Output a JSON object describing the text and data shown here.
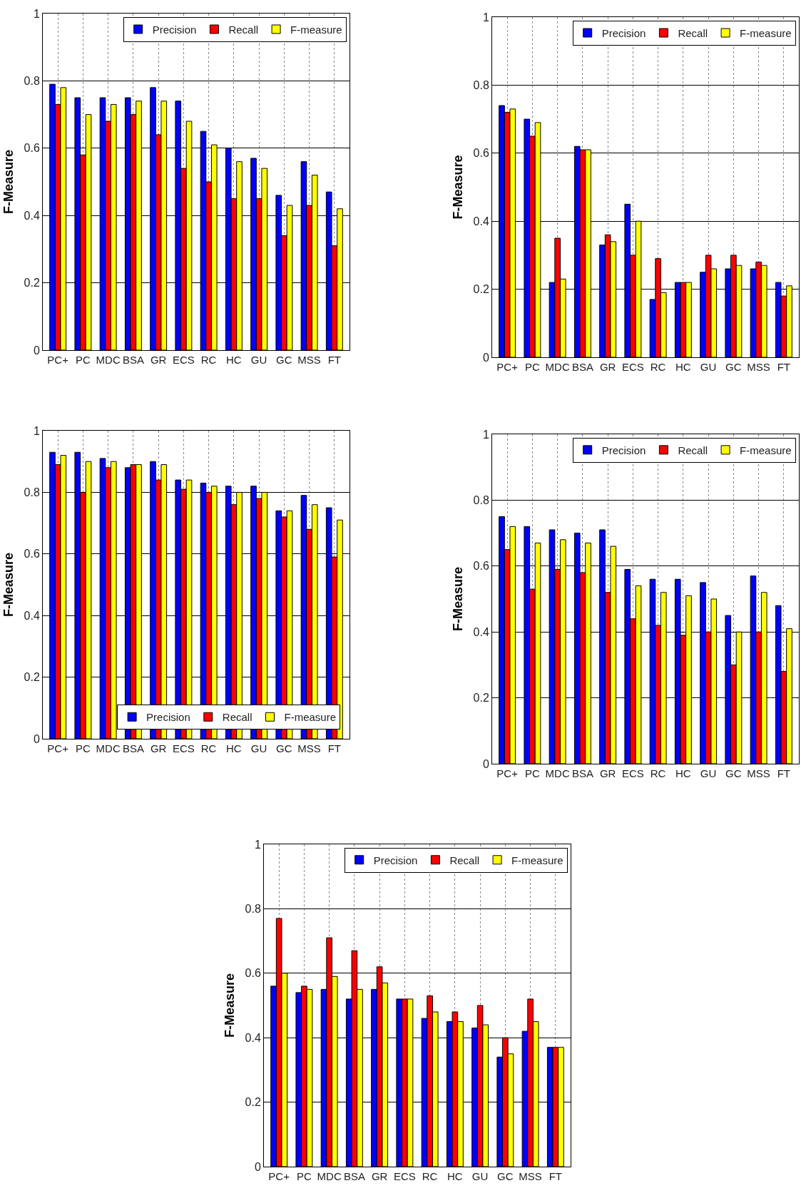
{
  "chart_data": [
    {
      "type": "bar",
      "ylabel": "F-Measure",
      "categories": [
        "PC+",
        "PC",
        "MDC",
        "BSA",
        "GR",
        "ECS",
        "RC",
        "HC",
        "GU",
        "GC",
        "MSS",
        "FT"
      ],
      "ylim": [
        0,
        1
      ],
      "yticks": [
        0,
        0.2,
        0.4,
        0.6,
        0.8,
        1
      ],
      "grid": true,
      "legend": "top right",
      "series": [
        {
          "name": "Precision",
          "color": "#0000ff",
          "values": [
            0.79,
            0.75,
            0.75,
            0.75,
            0.78,
            0.74,
            0.65,
            0.6,
            0.57,
            0.46,
            0.56,
            0.47
          ]
        },
        {
          "name": "Recall",
          "color": "#ff0000",
          "values": [
            0.73,
            0.58,
            0.68,
            0.7,
            0.64,
            0.54,
            0.5,
            0.45,
            0.45,
            0.34,
            0.43,
            0.31
          ]
        },
        {
          "name": "F-measure",
          "color": "#ffff00",
          "values": [
            0.78,
            0.7,
            0.73,
            0.74,
            0.74,
            0.68,
            0.61,
            0.56,
            0.54,
            0.43,
            0.52,
            0.42
          ]
        }
      ]
    },
    {
      "type": "bar",
      "ylabel": "F-Measure",
      "categories": [
        "PC+",
        "PC",
        "MDC",
        "BSA",
        "GR",
        "ECS",
        "RC",
        "HC",
        "GU",
        "GC",
        "MSS",
        "FT"
      ],
      "ylim": [
        0,
        1
      ],
      "yticks": [
        0,
        0.2,
        0.4,
        0.6,
        0.8,
        1
      ],
      "grid": true,
      "legend": "top right",
      "series": [
        {
          "name": "Precision",
          "color": "#0000ff",
          "values": [
            0.74,
            0.7,
            0.22,
            0.62,
            0.33,
            0.45,
            0.17,
            0.22,
            0.25,
            0.26,
            0.26,
            0.22
          ]
        },
        {
          "name": "Recall",
          "color": "#ff0000",
          "values": [
            0.72,
            0.65,
            0.35,
            0.61,
            0.36,
            0.3,
            0.29,
            0.22,
            0.3,
            0.3,
            0.28,
            0.18
          ]
        },
        {
          "name": "F-measure",
          "color": "#ffff00",
          "values": [
            0.73,
            0.69,
            0.23,
            0.61,
            0.34,
            0.4,
            0.19,
            0.22,
            0.26,
            0.27,
            0.27,
            0.21
          ]
        }
      ]
    },
    {
      "type": "bar",
      "ylabel": "F-Measure",
      "categories": [
        "PC+",
        "PC",
        "MDC",
        "BSA",
        "GR",
        "ECS",
        "RC",
        "HC",
        "GU",
        "GC",
        "MSS",
        "FT"
      ],
      "ylim": [
        0,
        1
      ],
      "yticks": [
        0,
        0.2,
        0.4,
        0.6,
        0.8,
        1
      ],
      "grid": true,
      "legend": "bottom",
      "series": [
        {
          "name": "Precision",
          "color": "#0000ff",
          "values": [
            0.93,
            0.93,
            0.91,
            0.88,
            0.9,
            0.84,
            0.83,
            0.82,
            0.82,
            0.74,
            0.79,
            0.75
          ]
        },
        {
          "name": "Recall",
          "color": "#ff0000",
          "values": [
            0.89,
            0.8,
            0.88,
            0.89,
            0.84,
            0.81,
            0.8,
            0.76,
            0.78,
            0.72,
            0.68,
            0.59
          ]
        },
        {
          "name": "F-measure",
          "color": "#ffff00",
          "values": [
            0.92,
            0.9,
            0.9,
            0.89,
            0.89,
            0.84,
            0.82,
            0.8,
            0.8,
            0.74,
            0.76,
            0.71
          ]
        }
      ]
    },
    {
      "type": "bar",
      "ylabel": "F-Measure",
      "categories": [
        "PC+",
        "PC",
        "MDC",
        "BSA",
        "GR",
        "ECS",
        "RC",
        "HC",
        "GU",
        "GC",
        "MSS",
        "FT"
      ],
      "ylim": [
        0,
        1
      ],
      "yticks": [
        0,
        0.2,
        0.4,
        0.6,
        0.8,
        1
      ],
      "grid": true,
      "legend": "top right",
      "series": [
        {
          "name": "Precision",
          "color": "#0000ff",
          "values": [
            0.75,
            0.72,
            0.71,
            0.7,
            0.71,
            0.59,
            0.56,
            0.56,
            0.55,
            0.45,
            0.57,
            0.48
          ]
        },
        {
          "name": "Recall",
          "color": "#ff0000",
          "values": [
            0.65,
            0.53,
            0.59,
            0.58,
            0.52,
            0.44,
            0.42,
            0.39,
            0.4,
            0.3,
            0.4,
            0.28
          ]
        },
        {
          "name": "F-measure",
          "color": "#ffff00",
          "values": [
            0.72,
            0.67,
            0.68,
            0.67,
            0.66,
            0.54,
            0.52,
            0.51,
            0.5,
            0.4,
            0.52,
            0.41
          ]
        }
      ]
    },
    {
      "type": "bar",
      "ylabel": "F-Measure",
      "categories": [
        "PC+",
        "PC",
        "MDC",
        "BSA",
        "GR",
        "ECS",
        "RC",
        "HC",
        "GU",
        "GC",
        "MSS",
        "FT"
      ],
      "ylim": [
        0,
        1
      ],
      "yticks": [
        0,
        0.2,
        0.4,
        0.6,
        0.8,
        1
      ],
      "grid": true,
      "legend": "top right",
      "series": [
        {
          "name": "Precision",
          "color": "#0000ff",
          "values": [
            0.56,
            0.54,
            0.55,
            0.52,
            0.55,
            0.52,
            0.46,
            0.45,
            0.43,
            0.34,
            0.42,
            0.37
          ]
        },
        {
          "name": "Recall",
          "color": "#ff0000",
          "values": [
            0.77,
            0.56,
            0.71,
            0.67,
            0.62,
            0.52,
            0.53,
            0.48,
            0.5,
            0.4,
            0.52,
            0.37
          ]
        },
        {
          "name": "F-measure",
          "color": "#ffff00",
          "values": [
            0.6,
            0.55,
            0.59,
            0.55,
            0.57,
            0.52,
            0.48,
            0.45,
            0.44,
            0.35,
            0.45,
            0.37
          ]
        }
      ]
    }
  ]
}
